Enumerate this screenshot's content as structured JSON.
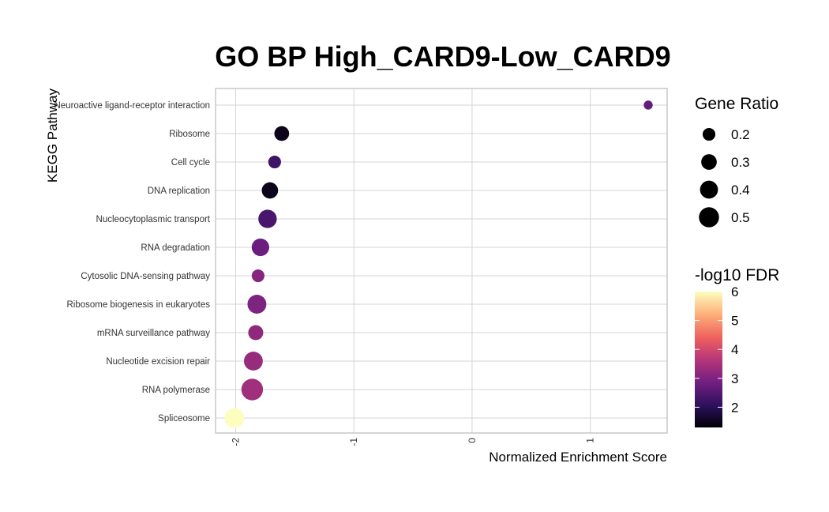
{
  "chart_data": {
    "type": "scatter",
    "title": "GO BP High_CARD9-Low_CARD9",
    "xlabel": "Normalized Enrichment Score",
    "ylabel": "KEGG Pathway",
    "xlim": [
      -2.17,
      1.65
    ],
    "x_ticks": [
      "-2",
      "-1",
      "0",
      "1"
    ],
    "x_tick_values": [
      -2,
      -1,
      0,
      1
    ],
    "grid": true,
    "legend_position": "right",
    "categories": [
      "Neuroactive ligand-receptor interaction",
      "Ribosome",
      "Cell cycle",
      "DNA replication",
      "Nucleocytoplasmic transport",
      "RNA degradation",
      "Cytosolic DNA-sensing pathway",
      "Ribosome biogenesis in eukaryotes",
      "mRNA surveillance pathway",
      "Nucleotide excision repair",
      "RNA polymerase",
      "Spliceosome"
    ],
    "points": [
      {
        "pathway": "Neuroactive ligand-receptor interaction",
        "nes": 1.49,
        "gene_ratio": 0.1,
        "neg_log10_fdr": 2.7
      },
      {
        "pathway": "Ribosome",
        "nes": -1.61,
        "gene_ratio": 0.27,
        "neg_log10_fdr": 1.5
      },
      {
        "pathway": "Cell cycle",
        "nes": -1.67,
        "gene_ratio": 0.2,
        "neg_log10_fdr": 2.3
      },
      {
        "pathway": "DNA replication",
        "nes": -1.71,
        "gene_ratio": 0.33,
        "neg_log10_fdr": 1.5
      },
      {
        "pathway": "Nucleocytoplasmic transport",
        "nes": -1.73,
        "gene_ratio": 0.42,
        "neg_log10_fdr": 2.4
      },
      {
        "pathway": "RNA degradation",
        "nes": -1.79,
        "gene_ratio": 0.38,
        "neg_log10_fdr": 2.8
      },
      {
        "pathway": "Cytosolic DNA-sensing pathway",
        "nes": -1.81,
        "gene_ratio": 0.2,
        "neg_log10_fdr": 3.1
      },
      {
        "pathway": "Ribosome biogenesis in eukaryotes",
        "nes": -1.82,
        "gene_ratio": 0.44,
        "neg_log10_fdr": 3.0
      },
      {
        "pathway": "mRNA surveillance pathway",
        "nes": -1.83,
        "gene_ratio": 0.28,
        "neg_log10_fdr": 3.2
      },
      {
        "pathway": "Nucleotide excision repair",
        "nes": -1.85,
        "gene_ratio": 0.44,
        "neg_log10_fdr": 3.3
      },
      {
        "pathway": "RNA polymerase",
        "nes": -1.86,
        "gene_ratio": 0.58,
        "neg_log10_fdr": 3.4
      },
      {
        "pathway": "Spliceosome",
        "nes": -2.01,
        "gene_ratio": 0.48,
        "neg_log10_fdr": 6.0
      }
    ],
    "size_legend": {
      "title": "Gene Ratio",
      "labels": [
        "0.2",
        "0.3",
        "0.4",
        "0.5"
      ],
      "values": [
        0.2,
        0.3,
        0.4,
        0.5
      ]
    },
    "color_legend": {
      "title": "-log10 FDR",
      "labels": [
        "2",
        "3",
        "4",
        "5",
        "6"
      ],
      "values": [
        2,
        3,
        4,
        5,
        6
      ],
      "range": [
        1.3,
        6.0
      ],
      "palette": [
        "#000004",
        "#2c105c",
        "#711f81",
        "#b63679",
        "#ee605e",
        "#fdae78",
        "#fcfdbf"
      ]
    }
  }
}
